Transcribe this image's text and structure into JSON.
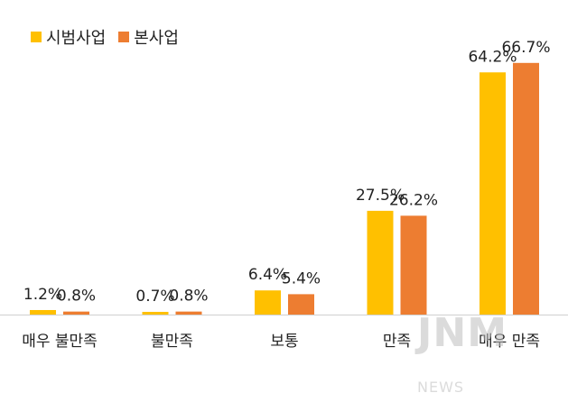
{
  "chart_data": {
    "type": "bar",
    "categories": [
      "매우 불만족",
      "불만족",
      "보통",
      "만족",
      "매우 만족"
    ],
    "series": [
      {
        "name": "시범사업",
        "values": [
          1.2,
          0.7,
          6.4,
          27.5,
          64.2
        ],
        "labels": [
          "1.2%",
          "0.7%",
          "6.4%",
          "27.5%",
          "64.2%"
        ],
        "color": "#FFC000"
      },
      {
        "name": "본사업",
        "values": [
          0.8,
          0.8,
          5.4,
          26.2,
          66.7
        ],
        "labels": [
          "0.8%",
          "0.8%",
          "5.4%",
          "26.2%",
          "66.7%"
        ],
        "color": "#ED7D31"
      }
    ],
    "ylim": [
      0,
      70
    ],
    "grid": false,
    "legend": "top-left"
  },
  "watermark": "JNM NEWS"
}
